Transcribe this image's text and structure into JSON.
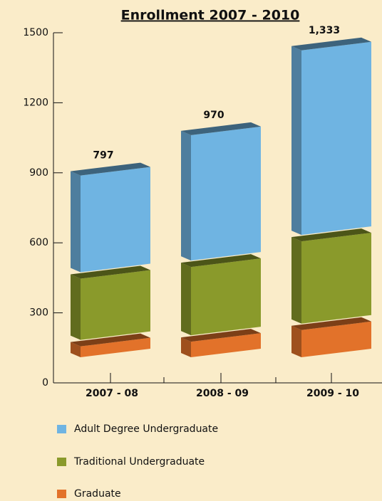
{
  "chart_data": {
    "type": "bar3d_stacked",
    "title": "Enrollment 2007 - 2010",
    "categories": [
      "2007 - 08",
      "2008 - 09",
      "2009 - 10"
    ],
    "series": [
      {
        "name": "Graduate",
        "color": "#e2722a",
        "values": [
          65,
          85,
          135
        ]
      },
      {
        "name": "Traditional Undergraduate",
        "color": "#8a9a2b",
        "values": [
          290,
          320,
          380
        ]
      },
      {
        "name": "Adult Degree Undergraduate",
        "color": "#6fb4e2",
        "values": [
          442,
          565,
          818
        ]
      }
    ],
    "totals": [
      797,
      970,
      1333
    ],
    "total_labels": [
      "797",
      "970",
      "1,333"
    ],
    "ylim": [
      0,
      1500
    ],
    "yticks": [
      0,
      300,
      600,
      900,
      1200,
      1500
    ]
  }
}
